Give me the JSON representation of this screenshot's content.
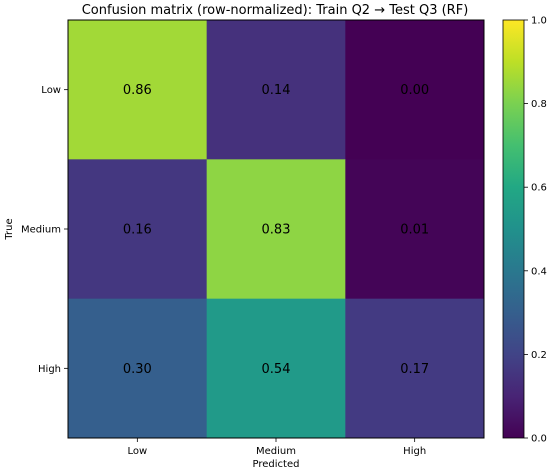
{
  "chart_data": {
    "type": "heatmap",
    "title": "Confusion matrix (row-normalized): Train Q2 → Test Q3 (RF)",
    "xlabel": "Predicted",
    "ylabel": "True",
    "x_categories": [
      "Low",
      "Medium",
      "High"
    ],
    "y_categories": [
      "Low",
      "Medium",
      "High"
    ],
    "values": [
      [
        0.86,
        0.14,
        0.0
      ],
      [
        0.16,
        0.83,
        0.01
      ],
      [
        0.3,
        0.54,
        0.17
      ]
    ],
    "value_labels": [
      [
        "0.86",
        "0.14",
        "0.00"
      ],
      [
        "0.16",
        "0.83",
        "0.01"
      ],
      [
        "0.30",
        "0.54",
        "0.17"
      ]
    ],
    "colormap": "viridis",
    "colorbar": {
      "range": [
        0.0,
        1.0
      ],
      "ticks": [
        0.0,
        0.2,
        0.4,
        0.6,
        0.8,
        1.0
      ],
      "tick_labels": [
        "0.0",
        "0.2",
        "0.4",
        "0.6",
        "0.8",
        "1.0"
      ]
    }
  }
}
